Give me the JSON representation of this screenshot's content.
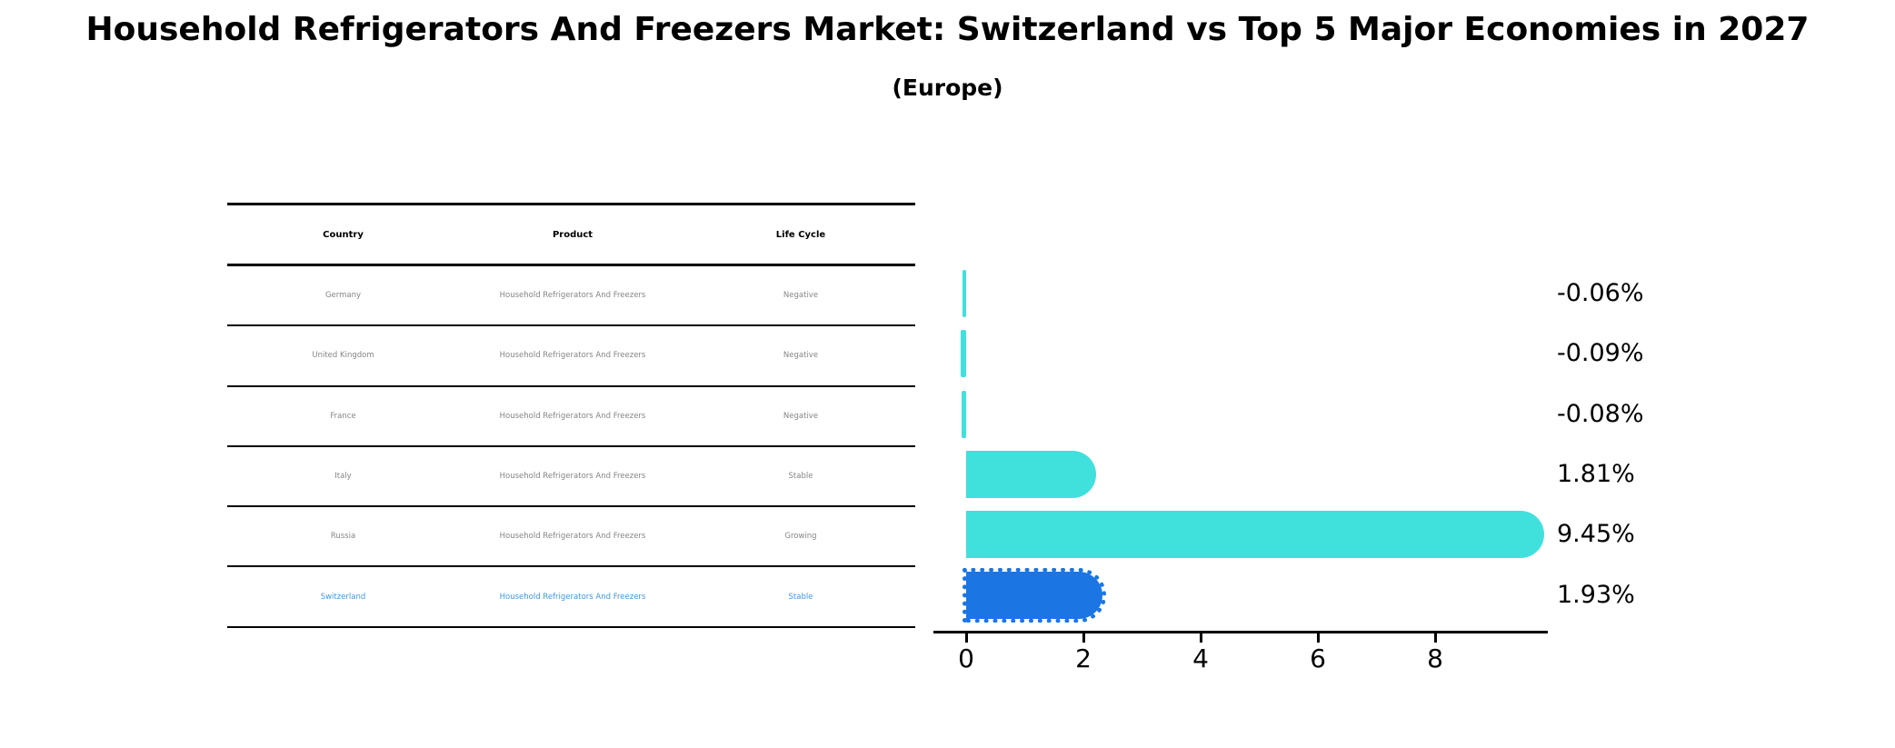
{
  "title": "Household Refrigerators And Freezers Market: Switzerland vs Top 5 Major Economies in 2027",
  "subtitle": "(Europe)",
  "table": {
    "headers": {
      "country": "Country",
      "product": "Product",
      "life_cycle": "Life Cycle"
    },
    "rows": [
      {
        "country": "Germany",
        "product": "Household Refrigerators And Freezers",
        "life_cycle": "Negative"
      },
      {
        "country": "United Kingdom",
        "product": "Household Refrigerators And Freezers",
        "life_cycle": "Negative"
      },
      {
        "country": "France",
        "product": "Household Refrigerators And Freezers",
        "life_cycle": "Negative"
      },
      {
        "country": "Italy",
        "product": "Household Refrigerators And Freezers",
        "life_cycle": "Stable"
      },
      {
        "country": "Russia",
        "product": "Household Refrigerators And Freezers",
        "life_cycle": "Growing"
      },
      {
        "country": "Switzerland",
        "product": "Household Refrigerators And Freezers",
        "life_cycle": "Stable"
      }
    ],
    "highlight_row": "Switzerland"
  },
  "chart_data": {
    "type": "bar",
    "orientation": "horizontal",
    "categories": [
      "Germany",
      "United Kingdom",
      "France",
      "Italy",
      "Russia",
      "Switzerland"
    ],
    "values": [
      -0.06,
      -0.09,
      -0.08,
      1.81,
      9.45,
      1.93
    ],
    "value_labels": [
      "-0.06%",
      "-0.09%",
      "-0.08%",
      "1.81%",
      "9.45%",
      "1.93%"
    ],
    "unit": "%",
    "xticks": [
      0,
      2,
      4,
      6,
      8
    ],
    "xtick_labels": [
      "0",
      "2",
      "4",
      "6",
      "8"
    ],
    "xlim": [
      -0.56,
      9.92
    ],
    "grid": false,
    "legend": false,
    "bar_colors": [
      "#40E0DD",
      "#40E0DD",
      "#40E0DD",
      "#40E0DD",
      "#40E0DD",
      "#1B76E4"
    ],
    "highlight_index": 5,
    "colors": {
      "turquoise": "#40E0DD",
      "highlight_blue": "#1B76E4",
      "highlight_text": "#3D97E8",
      "row_text": "#858585",
      "axis": "#000000"
    }
  }
}
